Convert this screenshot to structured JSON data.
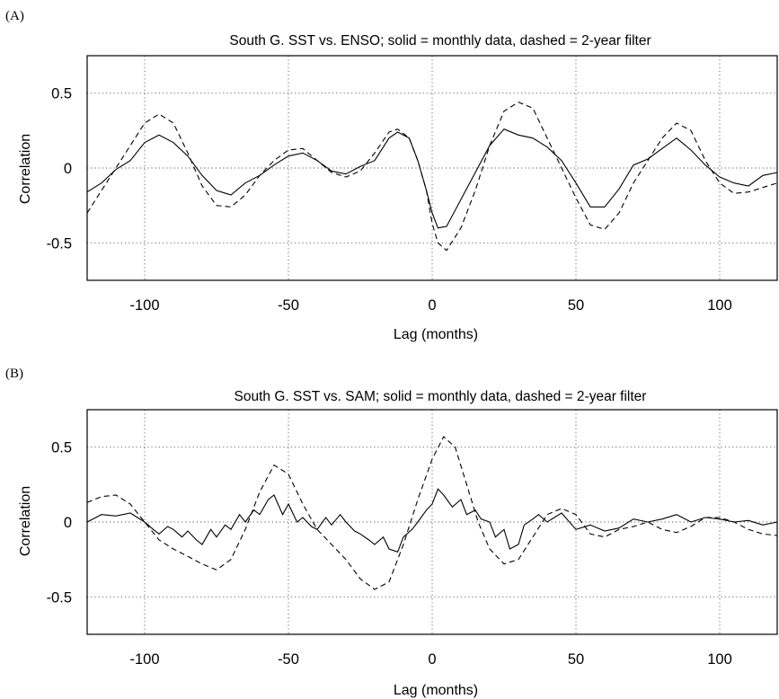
{
  "figure": {
    "panels": [
      {
        "tag": "(A)",
        "chart_data": {
          "type": "line",
          "title": "South G. SST vs. ENSO; solid = monthly data, dashed = 2-year filter",
          "xlabel": "Lag (months)",
          "ylabel": "Correlation",
          "xlim": [
            -120,
            120
          ],
          "ylim": [
            -0.75,
            0.75
          ],
          "xticks": [
            -100,
            -50,
            0,
            50,
            100
          ],
          "yticks": [
            0.5,
            0,
            -0.5
          ],
          "ytick_labels": [
            "0.5",
            "0",
            "-0.5"
          ],
          "grid": true,
          "series": [
            {
              "style": "solid",
              "x": [
                -120,
                -115,
                -110,
                -105,
                -100,
                -95,
                -90,
                -85,
                -80,
                -75,
                -70,
                -65,
                -60,
                -55,
                -50,
                -45,
                -40,
                -35,
                -30,
                -25,
                -20,
                -15,
                -12,
                -8,
                -5,
                -2,
                0,
                2,
                5,
                10,
                15,
                20,
                25,
                30,
                35,
                40,
                45,
                50,
                55,
                60,
                65,
                70,
                75,
                80,
                85,
                90,
                95,
                100,
                105,
                110,
                115,
                120
              ],
              "y": [
                -0.16,
                -0.1,
                -0.01,
                0.05,
                0.17,
                0.22,
                0.17,
                0.08,
                -0.05,
                -0.15,
                -0.18,
                -0.1,
                -0.05,
                0.02,
                0.08,
                0.1,
                0.05,
                -0.02,
                -0.04,
                0.01,
                0.05,
                0.2,
                0.24,
                0.2,
                0.05,
                -0.15,
                -0.3,
                -0.4,
                -0.39,
                -0.21,
                -0.03,
                0.15,
                0.26,
                0.22,
                0.2,
                0.14,
                0.05,
                -0.1,
                -0.26,
                -0.26,
                -0.14,
                0.02,
                0.06,
                0.13,
                0.2,
                0.12,
                0.02,
                -0.06,
                -0.1,
                -0.12,
                -0.05,
                -0.03
              ]
            },
            {
              "style": "dashed",
              "x": [
                -120,
                -115,
                -110,
                -105,
                -100,
                -95,
                -90,
                -85,
                -80,
                -75,
                -70,
                -65,
                -60,
                -55,
                -50,
                -45,
                -40,
                -35,
                -30,
                -25,
                -20,
                -15,
                -12,
                -8,
                -5,
                -2,
                0,
                2,
                5,
                10,
                15,
                20,
                25,
                30,
                35,
                40,
                45,
                50,
                55,
                60,
                65,
                70,
                75,
                80,
                85,
                90,
                95,
                100,
                105,
                110,
                115,
                120
              ],
              "y": [
                -0.3,
                -0.15,
                0.0,
                0.15,
                0.3,
                0.36,
                0.3,
                0.1,
                -0.12,
                -0.25,
                -0.26,
                -0.18,
                -0.05,
                0.05,
                0.12,
                0.13,
                0.05,
                -0.03,
                -0.06,
                -0.02,
                0.1,
                0.24,
                0.26,
                0.2,
                0.05,
                -0.15,
                -0.37,
                -0.5,
                -0.55,
                -0.4,
                -0.15,
                0.15,
                0.38,
                0.44,
                0.4,
                0.2,
                0.0,
                -0.2,
                -0.38,
                -0.41,
                -0.3,
                -0.1,
                0.05,
                0.2,
                0.3,
                0.25,
                0.05,
                -0.1,
                -0.17,
                -0.16,
                -0.13,
                -0.1
              ]
            }
          ]
        }
      },
      {
        "tag": "(B)",
        "chart_data": {
          "type": "line",
          "title": "South G. SST vs. SAM; solid = monthly data, dashed = 2-year filter",
          "xlabel": "Lag (months)",
          "ylabel": "Correlation",
          "xlim": [
            -120,
            120
          ],
          "ylim": [
            -0.75,
            0.75
          ],
          "xticks": [
            -100,
            -50,
            0,
            50,
            100
          ],
          "yticks": [
            0.5,
            0,
            -0.5
          ],
          "ytick_labels": [
            "0.5",
            "0",
            "-0.5"
          ],
          "grid": true,
          "series": [
            {
              "style": "solid",
              "x": [
                -120,
                -115,
                -110,
                -105,
                -100,
                -97,
                -95,
                -92,
                -90,
                -87,
                -85,
                -82,
                -80,
                -77,
                -75,
                -72,
                -70,
                -67,
                -65,
                -62,
                -60,
                -57,
                -55,
                -52,
                -50,
                -47,
                -45,
                -42,
                -40,
                -37,
                -35,
                -32,
                -30,
                -27,
                -25,
                -22,
                -20,
                -17,
                -15,
                -12,
                -10,
                -7,
                -5,
                -2,
                0,
                2,
                4,
                7,
                10,
                12,
                15,
                17,
                20,
                22,
                25,
                27,
                30,
                32,
                35,
                37,
                40,
                45,
                50,
                55,
                60,
                65,
                70,
                75,
                80,
                85,
                90,
                95,
                100,
                105,
                110,
                115,
                120
              ],
              "y": [
                0.0,
                0.05,
                0.04,
                0.06,
                0.0,
                -0.05,
                -0.08,
                -0.03,
                -0.05,
                -0.1,
                -0.06,
                -0.12,
                -0.15,
                -0.05,
                -0.1,
                -0.02,
                -0.05,
                0.05,
                0.0,
                0.08,
                0.05,
                0.15,
                0.18,
                0.05,
                0.12,
                0.0,
                0.03,
                -0.03,
                -0.05,
                0.03,
                -0.02,
                0.05,
                0.0,
                -0.06,
                -0.08,
                -0.12,
                -0.15,
                -0.1,
                -0.18,
                -0.2,
                -0.1,
                -0.05,
                0.0,
                0.08,
                0.12,
                0.22,
                0.18,
                0.1,
                0.15,
                0.05,
                0.08,
                0.02,
                0.0,
                -0.1,
                -0.05,
                -0.18,
                -0.15,
                -0.02,
                0.02,
                0.05,
                0.0,
                0.06,
                -0.05,
                -0.02,
                -0.06,
                -0.04,
                0.02,
                0.0,
                0.02,
                0.05,
                0.0,
                0.03,
                0.02,
                0.0,
                0.01,
                -0.02,
                0.0
              ]
            },
            {
              "style": "dashed",
              "x": [
                -120,
                -115,
                -110,
                -105,
                -100,
                -95,
                -90,
                -85,
                -80,
                -75,
                -70,
                -65,
                -60,
                -55,
                -50,
                -45,
                -40,
                -35,
                -30,
                -25,
                -20,
                -15,
                -10,
                -5,
                0,
                4,
                8,
                12,
                16,
                20,
                25,
                30,
                35,
                40,
                45,
                50,
                55,
                60,
                65,
                70,
                75,
                80,
                85,
                90,
                95,
                100,
                105,
                110,
                115,
                120
              ],
              "y": [
                0.13,
                0.17,
                0.18,
                0.12,
                0.0,
                -0.12,
                -0.18,
                -0.23,
                -0.28,
                -0.32,
                -0.25,
                -0.05,
                0.2,
                0.38,
                0.32,
                0.12,
                -0.05,
                -0.15,
                -0.25,
                -0.38,
                -0.45,
                -0.4,
                -0.15,
                0.15,
                0.42,
                0.57,
                0.5,
                0.25,
                0.0,
                -0.18,
                -0.28,
                -0.25,
                -0.1,
                0.05,
                0.09,
                0.05,
                -0.08,
                -0.1,
                -0.05,
                -0.03,
                0.0,
                -0.05,
                -0.07,
                -0.03,
                0.03,
                0.03,
                0.0,
                -0.05,
                -0.08,
                -0.09
              ]
            }
          ]
        }
      }
    ]
  }
}
